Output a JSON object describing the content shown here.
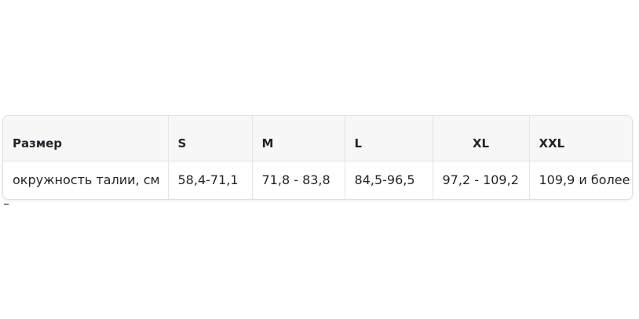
{
  "size_table": {
    "headers": [
      "Размер",
      "S",
      "M",
      "L",
      "XL",
      "XXL"
    ],
    "row": {
      "label": "окружность талии, см",
      "values": [
        "58,4-71,1",
        "71,8 - 83,8",
        "84,5-96,5",
        "97,2 - 109,2",
        "109,9 и более"
      ]
    }
  },
  "footnote": {
    "dash": "–"
  },
  "colors": {
    "page_bg": "#ffffff",
    "header_bg": "#f7f7f7",
    "grid_border": "#e4e4e4",
    "outer_border": "#e0e0e0",
    "text": "#212529"
  }
}
